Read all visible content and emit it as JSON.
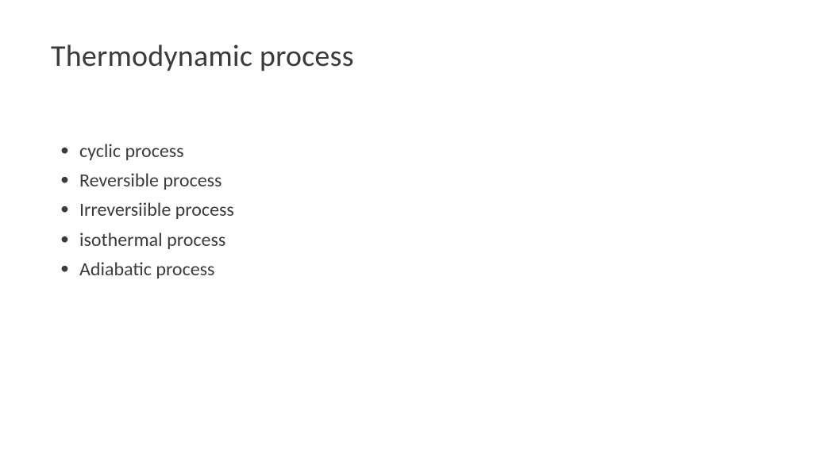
{
  "slide": {
    "title": "Thermodynamic process",
    "bullets": [
      "cyclic process",
      "Reversible process",
      "Irreversiible process",
      "isothermal process",
      "Adiabatic process"
    ],
    "title_fontsize": 38,
    "bullet_fontsize": 24,
    "text_color": "#3b3b3b",
    "background_color": "#ffffff"
  }
}
